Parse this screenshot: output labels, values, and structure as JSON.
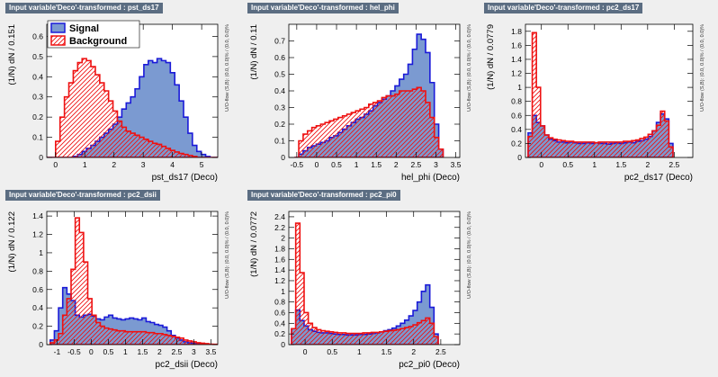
{
  "colors": {
    "background": "#efefef",
    "frame_fill": "#ffffff",
    "title_bar": "#5b6d82",
    "signal_fill": "#7b9ad1",
    "signal_line": "#1a1ad8",
    "background_line": "#ee1111"
  },
  "legend": {
    "signal_label": "Signal",
    "background_label": "Background"
  },
  "chart_data": [
    {
      "type": "histogram",
      "title": "Input variable'Deco'-transformed : pst_ds17",
      "xlabel": "pst_ds17 (Deco)",
      "ylabel": "(1/N) dN / 0.151",
      "side_label": "U/O-flow (S,B): (0.0, 0.0)% / (0.0, 0.0)%",
      "xlim": [
        -0.3,
        5.55
      ],
      "ylim": [
        0,
        0.66
      ],
      "xticks": [
        0,
        1,
        2,
        3,
        4,
        5
      ],
      "yticks": [
        0,
        0.1,
        0.2,
        0.3,
        0.4,
        0.5,
        0.6
      ],
      "bin_start": -0.3,
      "bin_width": 0.151,
      "legend_position": "top-left",
      "signal": [
        0,
        0,
        0,
        0,
        0,
        0,
        0.005,
        0.015,
        0.03,
        0.045,
        0.06,
        0.08,
        0.1,
        0.12,
        0.14,
        0.165,
        0.2,
        0.24,
        0.27,
        0.3,
        0.34,
        0.4,
        0.46,
        0.48,
        0.47,
        0.49,
        0.48,
        0.47,
        0.42,
        0.36,
        0.28,
        0.2,
        0.12,
        0.06,
        0.03,
        0.015,
        0.005,
        0,
        0
      ],
      "background": [
        0,
        0,
        0.08,
        0.2,
        0.3,
        0.37,
        0.43,
        0.47,
        0.49,
        0.48,
        0.45,
        0.41,
        0.37,
        0.33,
        0.28,
        0.23,
        0.18,
        0.15,
        0.13,
        0.12,
        0.11,
        0.1,
        0.09,
        0.08,
        0.07,
        0.065,
        0.055,
        0.045,
        0.035,
        0.027,
        0.02,
        0.015,
        0.01,
        0.005,
        0,
        0,
        0,
        0,
        0
      ]
    },
    {
      "type": "histogram",
      "title": "Input variable'Deco'-transformed : hel_phi",
      "xlabel": "hel_phi (Deco)",
      "ylabel": "(1/N) dN / 0.11",
      "side_label": "U/O-flow (S,B): (0.0, 0.0)% / (0.0, 0.0)%",
      "xlim": [
        -0.7,
        3.6
      ],
      "ylim": [
        0,
        0.8
      ],
      "xticks": [
        -0.5,
        0,
        0.5,
        1,
        1.5,
        2,
        2.5,
        3,
        3.5
      ],
      "yticks": [
        0,
        0.1,
        0.2,
        0.3,
        0.4,
        0.5,
        0.6,
        0.7
      ],
      "bin_start": -0.56,
      "bin_width": 0.11,
      "signal": [
        0,
        0.02,
        0.04,
        0.06,
        0.07,
        0.08,
        0.09,
        0.1,
        0.12,
        0.13,
        0.15,
        0.17,
        0.19,
        0.21,
        0.23,
        0.24,
        0.26,
        0.28,
        0.31,
        0.33,
        0.35,
        0.37,
        0.4,
        0.43,
        0.47,
        0.5,
        0.56,
        0.65,
        0.74,
        0.71,
        0.63,
        0.45,
        0.2,
        0.05
      ],
      "background": [
        0,
        0.1,
        0.14,
        0.16,
        0.18,
        0.19,
        0.2,
        0.21,
        0.22,
        0.23,
        0.24,
        0.25,
        0.26,
        0.27,
        0.28,
        0.29,
        0.3,
        0.32,
        0.33,
        0.34,
        0.36,
        0.37,
        0.37,
        0.38,
        0.4,
        0.4,
        0.4,
        0.41,
        0.42,
        0.4,
        0.33,
        0.24,
        0.12,
        0.05
      ]
    },
    {
      "type": "histogram",
      "title": "Input variable'Deco'-transformed : pc2_ds17",
      "xlabel": "pc2_ds17 (Deco)",
      "ylabel": "(1/N) dN / 0.0779",
      "side_label": "U/O-flow (S,B): (0.0, 0.0)% / (0.0, 0.0)%",
      "xlim": [
        -0.3,
        2.85
      ],
      "ylim": [
        0,
        1.9
      ],
      "xticks": [
        0,
        0.5,
        1,
        1.5,
        2,
        2.5
      ],
      "yticks": [
        0,
        0.2,
        0.4,
        0.6,
        0.8,
        1,
        1.2,
        1.4,
        1.6,
        1.8
      ],
      "bin_start": -0.25,
      "bin_width": 0.0779,
      "signal": [
        0.35,
        0.6,
        0.5,
        0.45,
        0.32,
        0.26,
        0.24,
        0.22,
        0.22,
        0.21,
        0.22,
        0.21,
        0.2,
        0.2,
        0.21,
        0.2,
        0.21,
        0.2,
        0.2,
        0.19,
        0.2,
        0.21,
        0.2,
        0.21,
        0.22,
        0.21,
        0.23,
        0.24,
        0.26,
        0.3,
        0.38,
        0.5,
        0.62,
        0.55,
        0.2
      ],
      "background": [
        0.3,
        1.78,
        1.0,
        0.45,
        0.32,
        0.28,
        0.26,
        0.25,
        0.24,
        0.23,
        0.23,
        0.22,
        0.22,
        0.22,
        0.22,
        0.22,
        0.21,
        0.22,
        0.22,
        0.22,
        0.22,
        0.22,
        0.22,
        0.23,
        0.23,
        0.24,
        0.25,
        0.27,
        0.29,
        0.33,
        0.38,
        0.46,
        0.66,
        0.52,
        0.15
      ]
    },
    {
      "type": "histogram",
      "title": "Input variable'Deco'-transformed : pc2_dsii",
      "xlabel": "pc2_dsii (Deco)",
      "ylabel": "(1/N) dN / 0.122",
      "side_label": "U/O-flow (S,B): (0.0, 0.0)% / (0.0, 0.0)%",
      "xlim": [
        -1.3,
        3.7
      ],
      "ylim": [
        0,
        1.45
      ],
      "xticks": [
        -1,
        -0.5,
        0,
        0.5,
        1,
        1.5,
        2,
        2.5,
        3,
        3.5
      ],
      "yticks": [
        0,
        0.2,
        0.4,
        0.6,
        0.8,
        1,
        1.2,
        1.4
      ],
      "bin_start": -1.2,
      "bin_width": 0.122,
      "signal": [
        0.05,
        0.15,
        0.4,
        0.62,
        0.55,
        0.48,
        0.32,
        0.3,
        0.32,
        0.33,
        0.31,
        0.28,
        0.27,
        0.3,
        0.32,
        0.29,
        0.28,
        0.27,
        0.28,
        0.29,
        0.28,
        0.27,
        0.29,
        0.25,
        0.24,
        0.22,
        0.21,
        0.19,
        0.15,
        0.1,
        0.07,
        0.05,
        0.03,
        0.02,
        0.01,
        0.01,
        0.005,
        0,
        0,
        0,
        0
      ],
      "background": [
        0.02,
        0.05,
        0.12,
        0.32,
        0.5,
        0.82,
        1.38,
        1.22,
        0.9,
        0.5,
        0.32,
        0.24,
        0.2,
        0.18,
        0.17,
        0.16,
        0.15,
        0.15,
        0.14,
        0.14,
        0.14,
        0.14,
        0.14,
        0.13,
        0.13,
        0.12,
        0.12,
        0.11,
        0.1,
        0.09,
        0.08,
        0.07,
        0.05,
        0.04,
        0.03,
        0.02,
        0.015,
        0.01,
        0.005,
        0.003,
        0.002
      ]
    },
    {
      "type": "histogram",
      "title": "Input variable'Deco'-transformed : pc2_pi0",
      "xlabel": "pc2_pi0 (Deco)",
      "ylabel": "(1/N) dN / 0.0772",
      "side_label": "U/O-flow (S,B): (0.0, 0.0)% / (0.0, 0.0)%",
      "xlim": [
        -0.3,
        2.85
      ],
      "ylim": [
        0,
        2.5
      ],
      "xticks": [
        0,
        0.5,
        1,
        1.5,
        2,
        2.5
      ],
      "yticks": [
        0,
        0.2,
        0.4,
        0.6,
        0.8,
        1,
        1.2,
        1.4,
        1.6,
        1.8,
        2,
        2.2,
        2.4
      ],
      "bin_start": -0.25,
      "bin_width": 0.0772,
      "signal": [
        0.3,
        0.65,
        0.45,
        0.35,
        0.28,
        0.25,
        0.23,
        0.22,
        0.22,
        0.21,
        0.2,
        0.19,
        0.19,
        0.18,
        0.18,
        0.18,
        0.19,
        0.19,
        0.2,
        0.21,
        0.22,
        0.24,
        0.26,
        0.28,
        0.31,
        0.35,
        0.4,
        0.46,
        0.54,
        0.64,
        0.8,
        1.0,
        1.12,
        0.7,
        0.2
      ],
      "background": [
        0.3,
        2.28,
        1.35,
        0.6,
        0.4,
        0.32,
        0.28,
        0.26,
        0.25,
        0.24,
        0.23,
        0.22,
        0.22,
        0.21,
        0.21,
        0.21,
        0.21,
        0.22,
        0.22,
        0.23,
        0.23,
        0.24,
        0.25,
        0.26,
        0.27,
        0.28,
        0.3,
        0.32,
        0.34,
        0.37,
        0.41,
        0.45,
        0.5,
        0.4,
        0.15
      ]
    }
  ]
}
